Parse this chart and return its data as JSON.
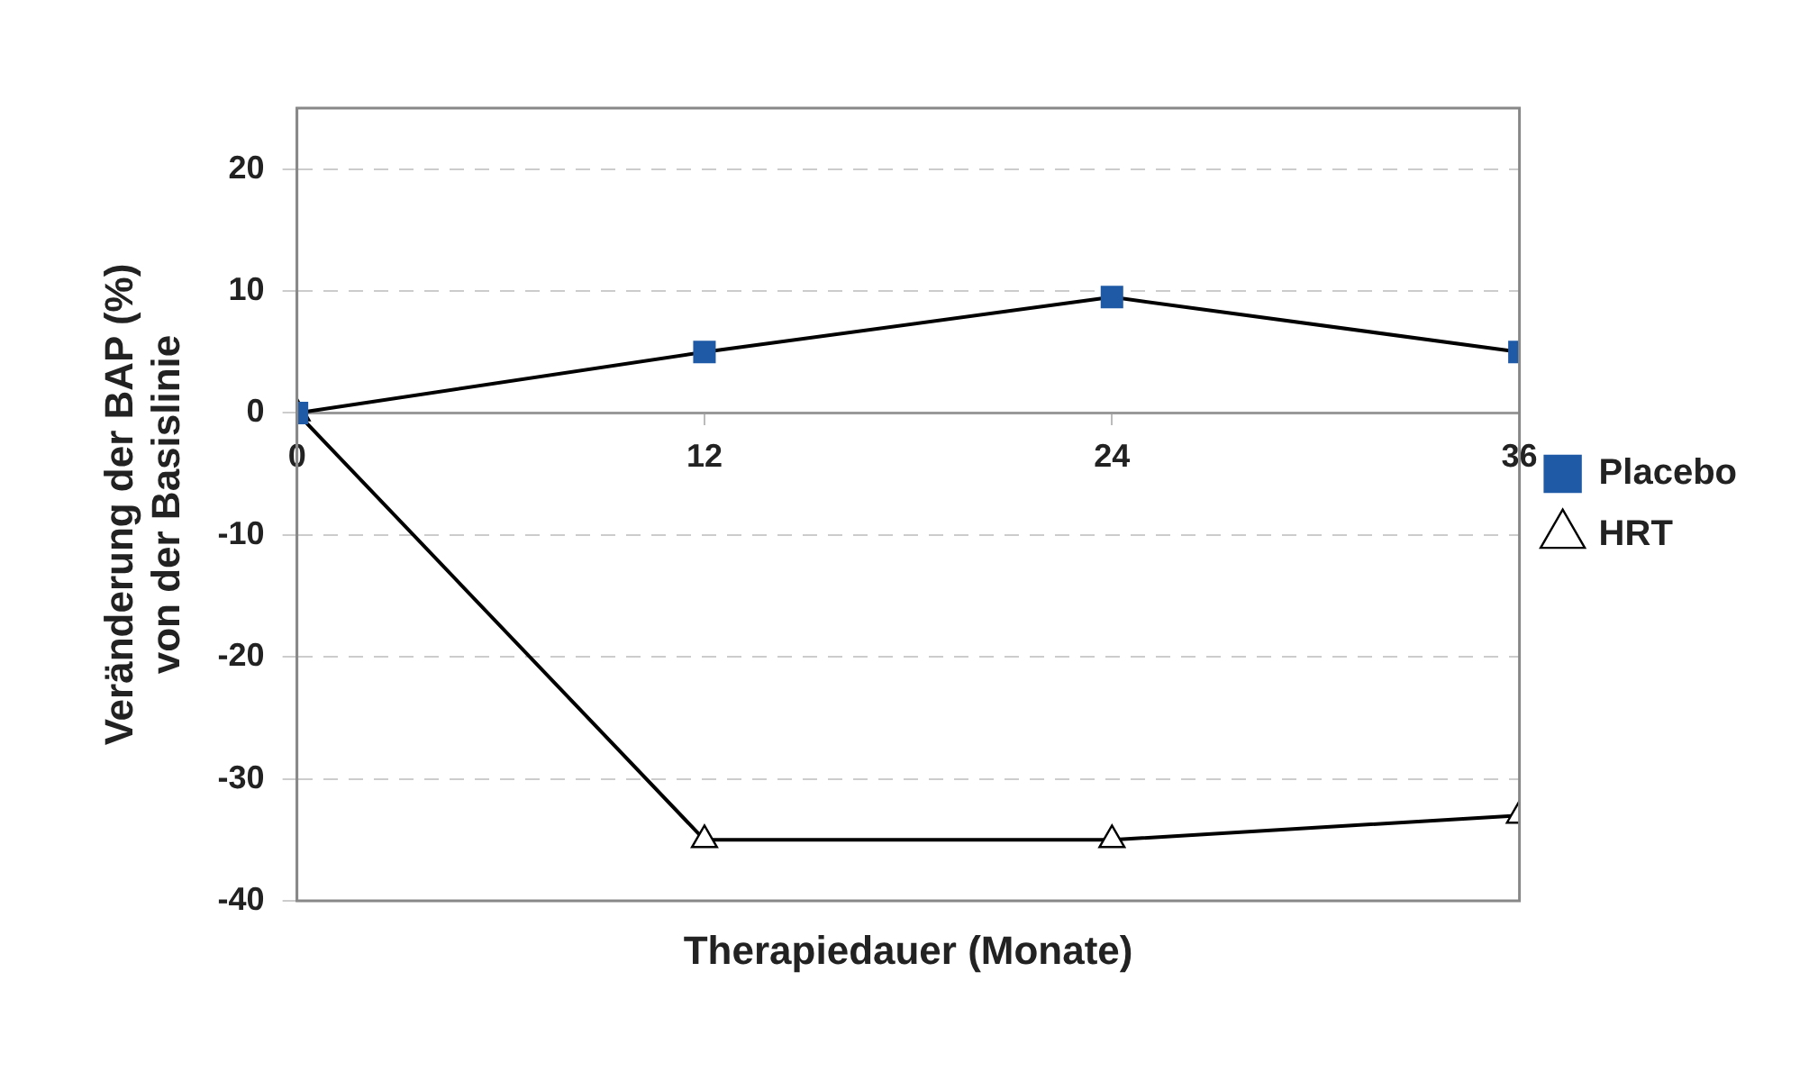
{
  "chart_data": {
    "type": "line",
    "xlabel": "Therapiedauer (Monate)",
    "ylabel": "Veränderung der BAP (%)\nvon der Basislinie",
    "x": [
      0,
      12,
      24,
      36
    ],
    "series": [
      {
        "name": "Placebo",
        "color": "#1f5aa6",
        "marker": "square",
        "values": [
          0,
          5,
          9.5,
          5
        ]
      },
      {
        "name": "HRT",
        "color": "#ffffff",
        "marker": "triangle",
        "values": [
          0,
          -35,
          -35,
          -33
        ]
      }
    ],
    "xlim": [
      0,
      36
    ],
    "xticks": [
      0,
      12,
      24,
      36
    ],
    "ylim": [
      -40,
      25
    ],
    "yticks": [
      -40,
      -30,
      -20,
      -10,
      0,
      10,
      20
    ],
    "grid": "y",
    "legend": "right",
    "line_style": "solid"
  }
}
